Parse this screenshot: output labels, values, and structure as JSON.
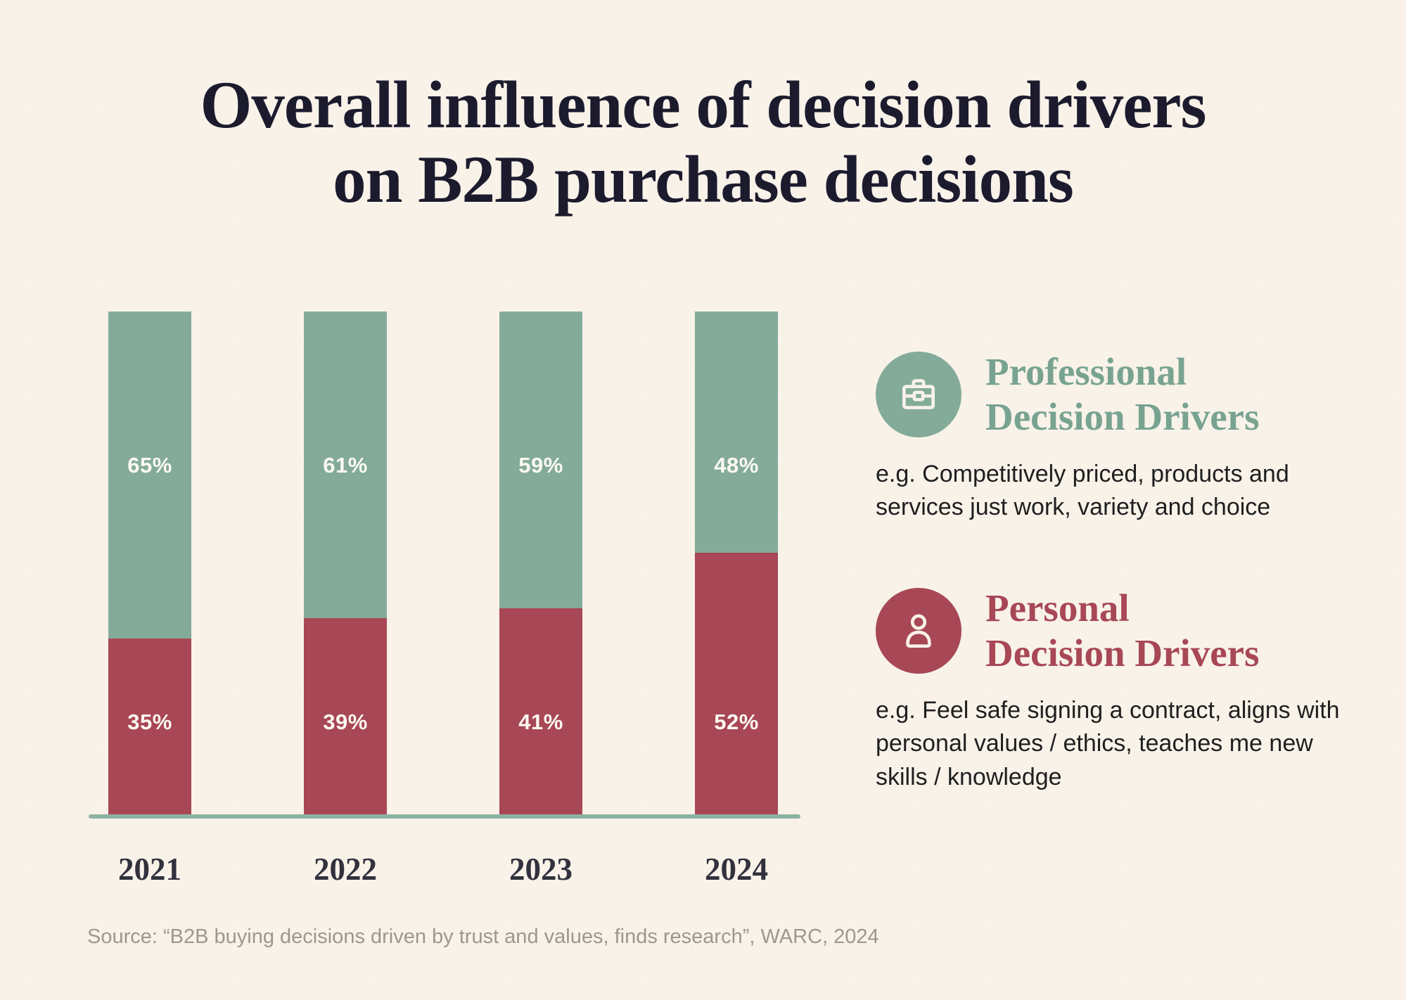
{
  "title": {
    "line1": "Overall influence of decision drivers",
    "line2": "on B2B purchase decisions"
  },
  "chart_data": {
    "type": "bar",
    "stacked": true,
    "percent_stacked": true,
    "categories": [
      "2021",
      "2022",
      "2023",
      "2024"
    ],
    "series": [
      {
        "name": "Professional Decision Drivers",
        "color": "#84ab9a",
        "values": [
          65,
          61,
          59,
          48
        ]
      },
      {
        "name": "Personal Decision Drivers",
        "color": "#a84755",
        "values": [
          35,
          39,
          41,
          52
        ]
      }
    ],
    "value_suffix": "%",
    "value_label_color": "#fdf9f2",
    "ylim": [
      0,
      100
    ],
    "grid": false,
    "axis_line_color": "#8db3a2",
    "legend_position": "right"
  },
  "legend": {
    "professional": {
      "title_line1": "Professional",
      "title_line2": "Decision Drivers",
      "description": "e.g. Competitively priced, products and services just work, variety and choice",
      "icon": "briefcase-icon",
      "color": "#84ab9a",
      "title_color": "#78a391"
    },
    "personal": {
      "title_line1": "Personal",
      "title_line2": "Decision Drivers",
      "description": "e.g. Feel safe signing a contract, aligns with personal values / ethics, teaches me new skills / knowledge",
      "icon": "person-icon",
      "color": "#a84755",
      "title_color": "#a84756"
    }
  },
  "source": "Source: “B2B buying decisions driven by trust and values, finds research”, WARC, 2024",
  "colors": {
    "background": "#f8f2e9",
    "title_text": "#1c1b2e",
    "year_text": "#32313e",
    "description_text": "#1f1f1f",
    "source_text": "#9d978e"
  }
}
